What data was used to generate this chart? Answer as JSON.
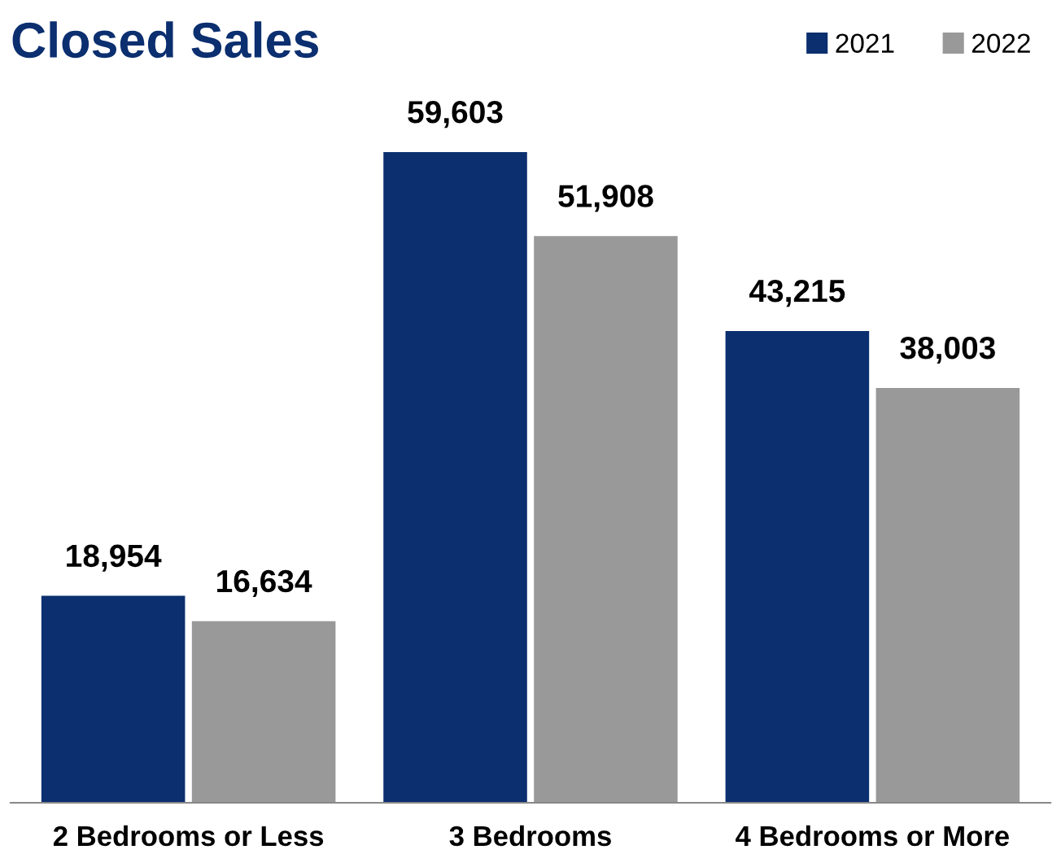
{
  "chart_data": {
    "type": "bar",
    "title": "Closed Sales",
    "categories": [
      "2 Bedrooms or Less",
      "3 Bedrooms",
      "4 Bedrooms or More"
    ],
    "series": [
      {
        "name": "2021",
        "color": "#0b2f6f",
        "values": [
          18954,
          59603,
          43215
        ],
        "value_labels": [
          "18,954",
          "59,603",
          "43,215"
        ]
      },
      {
        "name": "2022",
        "color": "#999999",
        "values": [
          16634,
          51908,
          38003
        ],
        "value_labels": [
          "16,634",
          "51,908",
          "38,003"
        ]
      }
    ],
    "legend": "top right",
    "grid": false
  }
}
